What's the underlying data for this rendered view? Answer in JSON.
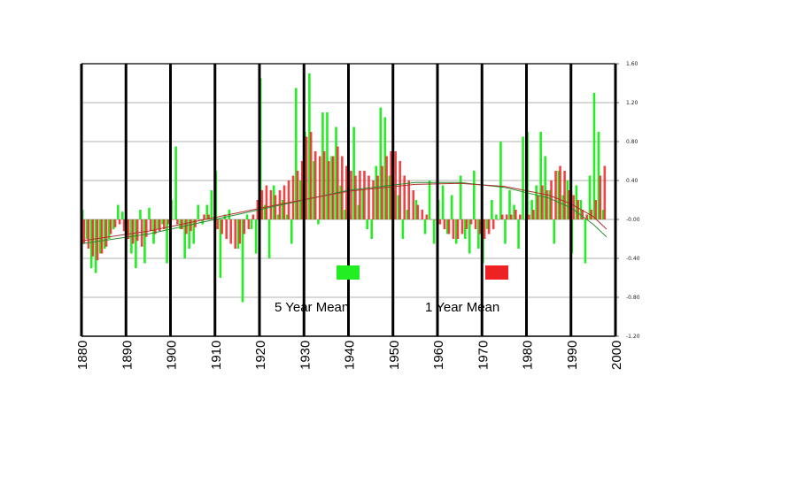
{
  "chart_data": {
    "type": "bar",
    "title": "",
    "xlabel": "",
    "ylabel": "",
    "xlim": [
      1880,
      2000
    ],
    "ylim": [
      -1.2,
      1.6
    ],
    "x_ticks": [
      1880,
      1890,
      1900,
      1910,
      1920,
      1930,
      1940,
      1950,
      1960,
      1970,
      1980,
      1990,
      2000
    ],
    "y_ticks": [
      {
        "value": 1.6,
        "label": "1.60"
      },
      {
        "value": 1.2,
        "label": "1.20"
      },
      {
        "value": 0.8,
        "label": "0.80"
      },
      {
        "value": 0.4,
        "label": "0.40"
      },
      {
        "value": 0.0,
        "label": "-0.00"
      },
      {
        "value": -0.4,
        "label": "-0.40"
      },
      {
        "value": -0.8,
        "label": "-0.80"
      },
      {
        "value": -1.2,
        "label": "-1.20"
      }
    ],
    "years": [
      1880,
      1881,
      1882,
      1883,
      1884,
      1885,
      1886,
      1887,
      1888,
      1889,
      1890,
      1891,
      1892,
      1893,
      1894,
      1895,
      1896,
      1897,
      1898,
      1899,
      1900,
      1901,
      1902,
      1903,
      1904,
      1905,
      1906,
      1907,
      1908,
      1909,
      1910,
      1911,
      1912,
      1913,
      1914,
      1915,
      1916,
      1917,
      1918,
      1919,
      1920,
      1921,
      1922,
      1923,
      1924,
      1925,
      1926,
      1927,
      1928,
      1929,
      1930,
      1931,
      1932,
      1933,
      1934,
      1935,
      1936,
      1937,
      1938,
      1939,
      1940,
      1941,
      1942,
      1943,
      1944,
      1945,
      1946,
      1947,
      1948,
      1949,
      1950,
      1951,
      1952,
      1953,
      1954,
      1955,
      1956,
      1957,
      1958,
      1959,
      1960,
      1961,
      1962,
      1963,
      1964,
      1965,
      1966,
      1967,
      1968,
      1969,
      1970,
      1971,
      1972,
      1973,
      1974,
      1975,
      1976,
      1977,
      1978,
      1979,
      1980,
      1981,
      1982,
      1983,
      1984,
      1985,
      1986,
      1987,
      1988,
      1989,
      1990,
      1991,
      1992,
      1993,
      1994,
      1995,
      1996,
      1997
    ],
    "series": [
      {
        "name": "5 Year Mean",
        "color": "#22ee22",
        "values": [
          0.1,
          -0.2,
          -0.5,
          -0.55,
          -0.35,
          -0.3,
          -0.2,
          -0.1,
          0.15,
          0.08,
          -0.15,
          -0.35,
          -0.5,
          0.1,
          -0.45,
          0.12,
          -0.25,
          -0.1,
          -0.05,
          -0.45,
          0.2,
          0.75,
          -0.1,
          -0.4,
          -0.3,
          -0.25,
          0.15,
          -0.05,
          0.15,
          0.3,
          0.5,
          -0.6,
          0.05,
          0.1,
          0.0,
          -0.3,
          -0.85,
          0.05,
          -0.1,
          -0.35,
          1.45,
          0.15,
          -0.4,
          0.35,
          0.05,
          0.2,
          0.05,
          -0.25,
          1.35,
          0.4,
          0.9,
          1.5,
          0.6,
          -0.05,
          1.1,
          1.1,
          0.65,
          0.95,
          0.35,
          0.1,
          0.05,
          0.95,
          0.15,
          0.3,
          -0.1,
          -0.2,
          0.55,
          1.15,
          1.05,
          0.45,
          0.3,
          0.25,
          -0.2,
          0.1,
          0.0,
          0.2,
          0.0,
          -0.15,
          0.4,
          -0.25,
          0.2,
          0.35,
          -0.15,
          0.25,
          -0.25,
          0.45,
          -0.2,
          -0.35,
          0.5,
          -0.3,
          -0.45,
          -0.1,
          0.2,
          0.05,
          0.8,
          -0.25,
          0.3,
          0.15,
          -0.3,
          0.85,
          0.9,
          0.2,
          0.35,
          0.9,
          0.65,
          0.3,
          -0.25,
          0.5,
          0.25,
          0.4,
          -0.35,
          0.35,
          0.2,
          -0.45,
          0.45,
          1.3,
          0.9,
          0.1
        ]
      },
      {
        "name": "1 Year Mean",
        "color": "#ee2222",
        "values": [
          -0.25,
          -0.3,
          -0.38,
          -0.42,
          -0.35,
          -0.28,
          -0.15,
          -0.08,
          -0.05,
          -0.12,
          -0.2,
          -0.25,
          -0.22,
          -0.28,
          -0.18,
          -0.12,
          -0.15,
          -0.12,
          -0.1,
          -0.05,
          0.0,
          -0.05,
          -0.1,
          -0.15,
          -0.12,
          -0.08,
          0.0,
          0.05,
          0.05,
          0.0,
          -0.1,
          -0.15,
          -0.2,
          -0.25,
          -0.3,
          -0.25,
          -0.15,
          -0.1,
          0.05,
          0.2,
          0.3,
          0.35,
          0.3,
          0.25,
          0.3,
          0.35,
          0.4,
          0.45,
          0.5,
          0.6,
          0.85,
          0.9,
          0.7,
          0.65,
          0.7,
          0.6,
          0.65,
          0.75,
          0.65,
          0.55,
          0.5,
          0.45,
          0.5,
          0.5,
          0.45,
          0.4,
          0.45,
          0.55,
          0.65,
          0.7,
          0.7,
          0.6,
          0.45,
          0.4,
          0.3,
          0.15,
          0.1,
          0.05,
          0.0,
          0.0,
          -0.05,
          -0.1,
          -0.15,
          -0.2,
          -0.2,
          -0.15,
          -0.1,
          -0.05,
          -0.1,
          -0.15,
          -0.2,
          -0.15,
          -0.1,
          0.0,
          0.05,
          0.05,
          0.05,
          0.1,
          0.05,
          0.0,
          0.05,
          0.1,
          0.25,
          0.35,
          0.3,
          0.4,
          0.5,
          0.55,
          0.5,
          0.3,
          0.25,
          0.2,
          0.1,
          0.05,
          0.1,
          0.2,
          0.45,
          0.55
        ]
      }
    ],
    "trend_lines": [
      {
        "name": "trend-1",
        "color": "#2a8a2a",
        "points": [
          [
            1880,
            -0.25
          ],
          [
            1895,
            -0.15
          ],
          [
            1910,
            0.0
          ],
          [
            1925,
            0.15
          ],
          [
            1940,
            0.3
          ],
          [
            1955,
            0.38
          ],
          [
            1965,
            0.38
          ],
          [
            1975,
            0.33
          ],
          [
            1985,
            0.22
          ],
          [
            1990,
            0.12
          ],
          [
            1995,
            -0.05
          ],
          [
            1998,
            -0.18
          ]
        ]
      },
      {
        "name": "trend-2",
        "color": "#b03030",
        "points": [
          [
            1880,
            -0.22
          ],
          [
            1895,
            -0.12
          ],
          [
            1910,
            0.02
          ],
          [
            1925,
            0.16
          ],
          [
            1940,
            0.29
          ],
          [
            1955,
            0.36
          ],
          [
            1965,
            0.37
          ],
          [
            1975,
            0.34
          ],
          [
            1985,
            0.25
          ],
          [
            1990,
            0.16
          ],
          [
            1995,
            0.03
          ],
          [
            1998,
            -0.1
          ]
        ]
      }
    ],
    "legend": [
      {
        "label": "5 Year Mean",
        "color": "#22ee22"
      },
      {
        "label": "1 Year Mean",
        "color": "#ee2222"
      }
    ],
    "legend_position": "bottom-center",
    "grid": true
  }
}
